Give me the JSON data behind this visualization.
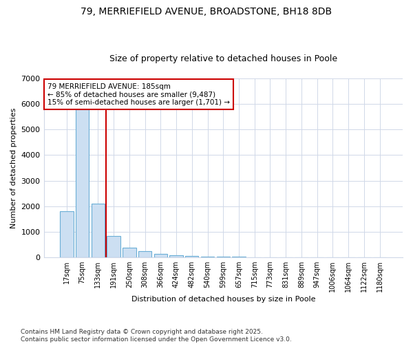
{
  "title1": "79, MERRIEFIELD AVENUE, BROADSTONE, BH18 8DB",
  "title2": "Size of property relative to detached houses in Poole",
  "xlabel": "Distribution of detached houses by size in Poole",
  "ylabel": "Number of detached properties",
  "bar_labels": [
    "17sqm",
    "75sqm",
    "133sqm",
    "191sqm",
    "250sqm",
    "308sqm",
    "366sqm",
    "424sqm",
    "482sqm",
    "540sqm",
    "599sqm",
    "657sqm",
    "715sqm",
    "773sqm",
    "831sqm",
    "889sqm",
    "947sqm",
    "1006sqm",
    "1064sqm",
    "1122sqm",
    "1180sqm"
  ],
  "bar_values": [
    1800,
    5800,
    2100,
    850,
    380,
    240,
    130,
    80,
    50,
    40,
    30,
    20,
    15,
    10,
    8,
    5,
    4,
    3,
    2,
    2,
    1
  ],
  "bar_color": "#ccdff2",
  "bar_edge_color": "#6aaed6",
  "vline_color": "#cc0000",
  "annotation_text": "79 MERRIEFIELD AVENUE: 185sqm\n← 85% of detached houses are smaller (9,487)\n15% of semi-detached houses are larger (1,701) →",
  "annotation_box_color": "#cc0000",
  "ylim": [
    0,
    7000
  ],
  "yticks": [
    0,
    1000,
    2000,
    3000,
    4000,
    5000,
    6000,
    7000
  ],
  "bg_color": "#ffffff",
  "grid_color": "#d0d8e8",
  "footnote": "Contains HM Land Registry data © Crown copyright and database right 2025.\nContains public sector information licensed under the Open Government Licence v3.0."
}
